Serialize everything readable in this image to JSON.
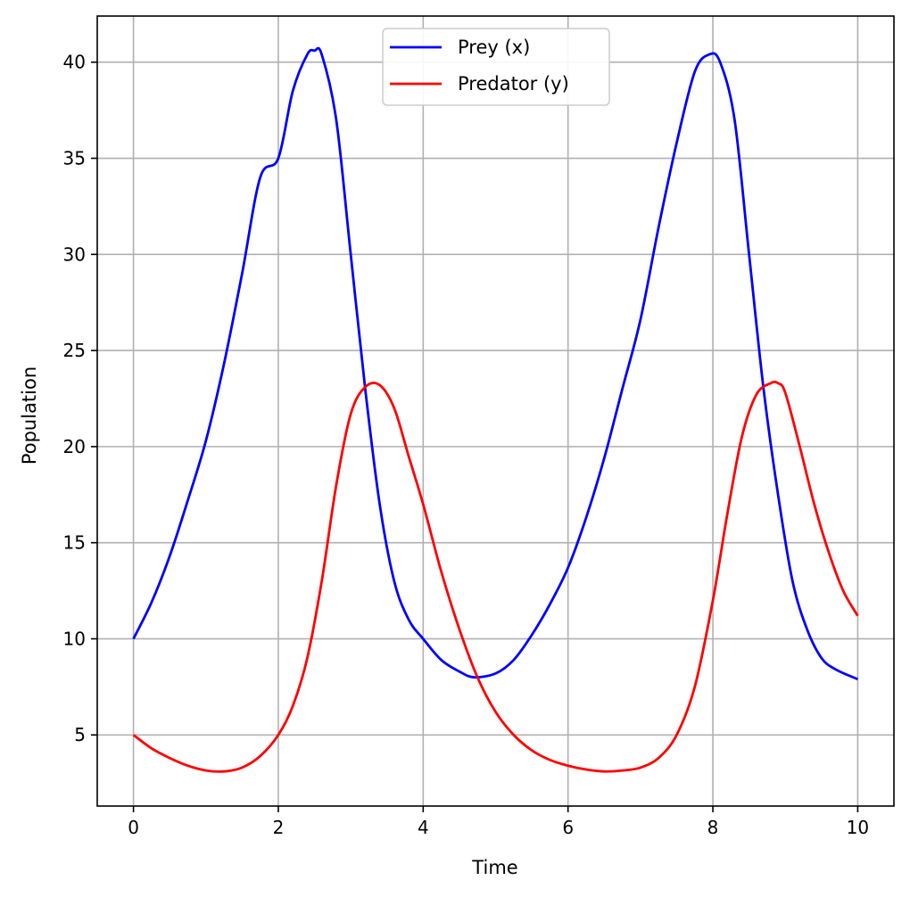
{
  "chart_data": {
    "type": "line",
    "title": "",
    "xlabel": "Time",
    "ylabel": "Population",
    "xlim": [
      -0.5,
      10.5
    ],
    "ylim": [
      1.3,
      42.4
    ],
    "xticks": [
      0,
      2,
      4,
      6,
      8,
      10
    ],
    "yticks": [
      5,
      10,
      15,
      20,
      25,
      30,
      35,
      40
    ],
    "grid": true,
    "legend_position": "top-center",
    "series": [
      {
        "name": "Prey (x)",
        "color": "#0000ff",
        "x": [
          0,
          0.25,
          0.5,
          0.75,
          1.0,
          1.25,
          1.5,
          1.75,
          2.0,
          2.2,
          2.4,
          2.5,
          2.6,
          2.8,
          3.0,
          3.2,
          3.4,
          3.6,
          3.8,
          4.0,
          4.25,
          4.5,
          4.7,
          5.0,
          5.25,
          5.5,
          5.75,
          6.0,
          6.25,
          6.5,
          6.75,
          7.0,
          7.25,
          7.5,
          7.75,
          7.95,
          8.1,
          8.3,
          8.5,
          8.7,
          8.9,
          9.1,
          9.3,
          9.5,
          9.7,
          10.0
        ],
        "values": [
          10.0,
          11.9,
          14.3,
          17.2,
          20.3,
          24.3,
          29.0,
          34.0,
          35.0,
          38.5,
          40.4,
          40.6,
          40.4,
          37.0,
          30.0,
          23.0,
          17.0,
          13.0,
          11.0,
          10.0,
          8.9,
          8.3,
          8.0,
          8.2,
          8.9,
          10.2,
          11.8,
          13.7,
          16.3,
          19.4,
          23.0,
          26.6,
          31.4,
          35.8,
          39.5,
          40.4,
          40.0,
          37.0,
          30.0,
          23.0,
          17.5,
          13.0,
          10.5,
          9.0,
          8.4,
          7.9
        ]
      },
      {
        "name": "Predator (y)",
        "color": "#ff0000",
        "x": [
          0,
          0.25,
          0.5,
          0.75,
          1.0,
          1.25,
          1.5,
          1.75,
          2.0,
          2.2,
          2.4,
          2.6,
          2.8,
          3.0,
          3.2,
          3.4,
          3.6,
          3.8,
          4.0,
          4.25,
          4.5,
          4.75,
          5.0,
          5.25,
          5.5,
          5.75,
          6.0,
          6.25,
          6.5,
          6.75,
          7.0,
          7.25,
          7.5,
          7.75,
          8.0,
          8.2,
          8.4,
          8.6,
          8.8,
          8.9,
          9.0,
          9.2,
          9.4,
          9.6,
          9.8,
          10.0
        ],
        "values": [
          5.0,
          4.3,
          3.8,
          3.4,
          3.15,
          3.1,
          3.3,
          3.9,
          5.0,
          6.5,
          9.0,
          13.0,
          18.0,
          21.7,
          23.1,
          23.2,
          22.0,
          19.5,
          17.0,
          13.5,
          10.5,
          8.0,
          6.2,
          5.0,
          4.2,
          3.7,
          3.4,
          3.2,
          3.1,
          3.15,
          3.3,
          3.8,
          5.0,
          7.5,
          12.0,
          16.5,
          20.5,
          22.7,
          23.3,
          23.3,
          22.8,
          20.0,
          17.0,
          14.5,
          12.5,
          11.2
        ]
      }
    ]
  }
}
